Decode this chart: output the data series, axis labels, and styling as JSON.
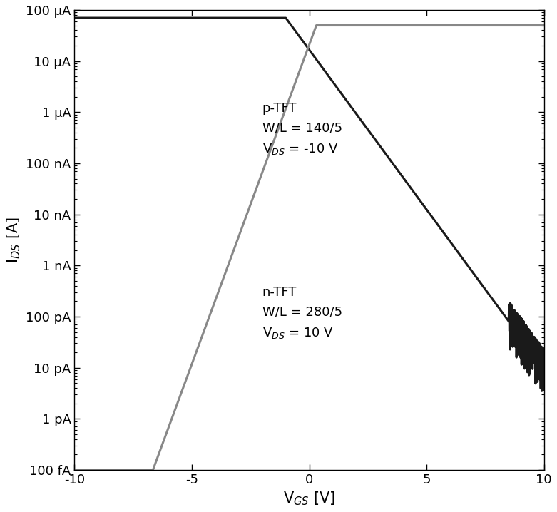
{
  "xlim": [
    -10,
    10
  ],
  "ylim": [
    1e-13,
    0.0001
  ],
  "xlabel": "V$_{GS}$ [V]",
  "ylabel": "I$_{DS}$ [A]",
  "p_tft_annotation_line1": "p-TFT",
  "p_tft_annotation_line2": "W/L = 140/5",
  "p_tft_annotation_line3": "V$_{DS}$ = -10 V",
  "n_tft_annotation_line1": "n-TFT",
  "n_tft_annotation_line2": "W/L = 280/5",
  "n_tft_annotation_line3": "V$_{DS}$ = 10 V",
  "p_tft_color": "#1a1a1a",
  "n_tft_color": "#888888",
  "background_color": "#ffffff",
  "ytick_labels": [
    "100 fA",
    "1 pA",
    "10 pA",
    "100 pA",
    "1 nA",
    "10 nA",
    "100 nA",
    "1 μA",
    "10 μA",
    "100 μA"
  ],
  "ytick_values": [
    1e-13,
    1e-12,
    1e-11,
    1e-10,
    1e-09,
    1e-08,
    1e-07,
    1e-06,
    1e-05,
    0.0001
  ],
  "xtick_values": [
    -10,
    -5,
    0,
    5,
    10
  ],
  "p_Vth": -1.0,
  "p_ss": 1.6,
  "p_Ion": 7e-05,
  "n_Vth": 0.3,
  "n_ss": 0.8,
  "n_Ion": 5e-05
}
